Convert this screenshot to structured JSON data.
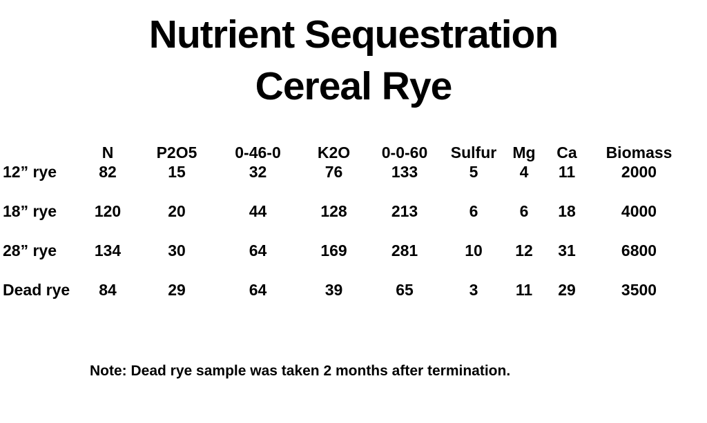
{
  "title": {
    "line1": "Nutrient Sequestration",
    "line2": "Cereal Rye"
  },
  "chart_data": {
    "type": "table",
    "title": "Nutrient Sequestration Cereal Rye",
    "columns": [
      "N",
      "P2O5",
      "0-46-0",
      "K2O",
      "0-0-60",
      "Sulfur",
      "Mg",
      "Ca",
      "Biomass"
    ],
    "rows": [
      {
        "label": "12” rye",
        "values": [
          82,
          15,
          32,
          76,
          133,
          5,
          4,
          11,
          2000
        ]
      },
      {
        "label": "18” rye",
        "values": [
          120,
          20,
          44,
          128,
          213,
          6,
          6,
          18,
          4000
        ]
      },
      {
        "label": "28” rye",
        "values": [
          134,
          30,
          64,
          169,
          281,
          10,
          12,
          31,
          6800
        ]
      },
      {
        "label": "Dead rye",
        "values": [
          84,
          29,
          64,
          39,
          65,
          3,
          11,
          29,
          3500
        ]
      }
    ]
  },
  "note": "Note: Dead rye sample was taken 2 months after termination.",
  "colors": {
    "text": "#000000",
    "background": "#ffffff"
  }
}
